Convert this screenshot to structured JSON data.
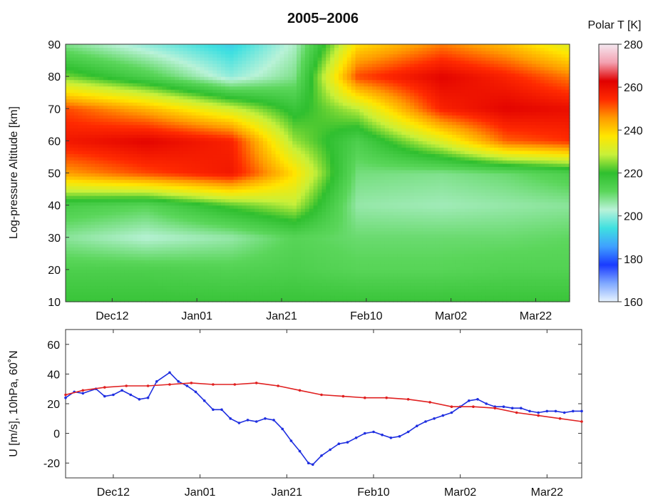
{
  "chart_data": [
    {
      "type": "heatmap",
      "title": "2005–2006",
      "ylabel": "Log-pressure Altitude [km]",
      "xlabel": "",
      "colorbar_label": "Polar T [K]",
      "colorbar_ticks": [
        160,
        180,
        200,
        220,
        240,
        260,
        280
      ],
      "clim": [
        160,
        280
      ],
      "x_ticks": [
        "Dec12",
        "Jan01",
        "Jan21",
        "Feb10",
        "Mar02",
        "Mar22"
      ],
      "x_tick_days": [
        12,
        32,
        52,
        72,
        92,
        112
      ],
      "xlim_days": [
        1,
        120
      ],
      "ylim": [
        10,
        90
      ],
      "y_ticks": [
        10,
        20,
        30,
        40,
        50,
        60,
        70,
        80,
        90
      ],
      "grid": false,
      "colormap": [
        "#e8f4ff",
        "#7fa8ff",
        "#1a3bff",
        "#3fa0ff",
        "#3fe0e0",
        "#b9f2d8",
        "#5ad65a",
        "#2fbf2f",
        "#c8f03a",
        "#ffe600",
        "#ff9a00",
        "#ff2a00",
        "#e00000",
        "#f3a0b0",
        "#f4e8f0"
      ],
      "altitude_levels_km": [
        10,
        20,
        30,
        40,
        50,
        60,
        70,
        80,
        90
      ],
      "sample_days": [
        1,
        20,
        40,
        55,
        70,
        90,
        105,
        120
      ],
      "temperature_K": [
        [
          218,
          218,
          218,
          218,
          218,
          218,
          218,
          218
        ],
        [
          214,
          214,
          213,
          214,
          212,
          212,
          213,
          213
        ],
        [
          207,
          203,
          206,
          212,
          210,
          210,
          210,
          211
        ],
        [
          215,
          212,
          222,
          228,
          206,
          205,
          206,
          207
        ],
        [
          245,
          252,
          258,
          238,
          209,
          208,
          210,
          214
        ],
        [
          258,
          262,
          256,
          226,
          214,
          232,
          250,
          254
        ],
        [
          252,
          243,
          230,
          218,
          228,
          256,
          262,
          260
        ],
        [
          224,
          214,
          200,
          208,
          252,
          262,
          256,
          248
        ],
        [
          208,
          200,
          192,
          204,
          238,
          248,
          242,
          232
        ]
      ]
    },
    {
      "type": "line",
      "ylabel": "U [m/s], 10hPa, 60˚N",
      "xlabel": "",
      "x_ticks": [
        "Dec12",
        "Jan01",
        "Jan21",
        "Feb10",
        "Mar02",
        "Mar22"
      ],
      "x_tick_days": [
        12,
        32,
        52,
        72,
        92,
        112
      ],
      "xlim_days": [
        1,
        120
      ],
      "ylim": [
        -30,
        70
      ],
      "y_ticks": [
        -20,
        0,
        20,
        40,
        60
      ],
      "grid": false,
      "series": [
        {
          "color": "#1f2fe0",
          "x_days": [
            1,
            3,
            5,
            8,
            10,
            12,
            14,
            16,
            18,
            20,
            22,
            25,
            27,
            29,
            31,
            33,
            35,
            37,
            39,
            41,
            43,
            45,
            47,
            49,
            51,
            53,
            55,
            57,
            58,
            60,
            62,
            64,
            66,
            68,
            70,
            72,
            74,
            76,
            78,
            80,
            82,
            84,
            86,
            88,
            90,
            92,
            94,
            96,
            98,
            100,
            102,
            104,
            106,
            108,
            110,
            112,
            114,
            116,
            118,
            120
          ],
          "values": [
            24,
            28,
            27,
            30,
            25,
            26,
            29,
            26,
            23,
            24,
            35,
            41,
            35,
            32,
            28,
            22,
            16,
            16,
            10,
            7,
            9,
            8,
            10,
            9,
            3,
            -5,
            -12,
            -20,
            -21,
            -15,
            -11,
            -7,
            -6,
            -3,
            0,
            1,
            -1,
            -3,
            -2,
            1,
            5,
            8,
            10,
            12,
            14,
            18,
            22,
            23,
            20,
            18,
            18,
            17,
            17,
            15,
            14,
            15,
            15,
            14,
            15,
            15
          ]
        },
        {
          "color": "#e02020",
          "x_days": [
            1,
            5,
            10,
            15,
            20,
            25,
            30,
            35,
            40,
            45,
            50,
            55,
            60,
            65,
            70,
            75,
            80,
            85,
            90,
            95,
            100,
            105,
            110,
            115,
            120
          ],
          "values": [
            26,
            29,
            31,
            32,
            32,
            33,
            34,
            33,
            33,
            34,
            32,
            29,
            26,
            25,
            24,
            24,
            23,
            21,
            18,
            18,
            17,
            14,
            12,
            10,
            8
          ]
        }
      ]
    }
  ]
}
